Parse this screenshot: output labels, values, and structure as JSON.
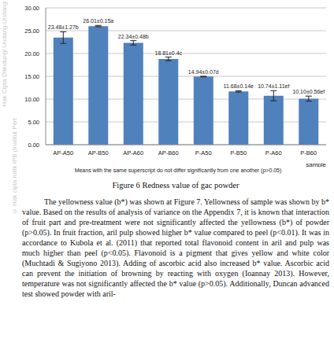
{
  "watermarks": [
    "Hak Cipta Dilindungi Undang-Undang",
    "© Hak cipta milik IPB (Institut Pert"
  ],
  "chart_data": {
    "type": "bar",
    "categories": [
      "AP-A50",
      "AP-B50",
      "AP-A60",
      "AP-B60",
      "P-A50",
      "P-B50",
      "P-A60",
      "P-B60"
    ],
    "values": [
      23.48,
      26.01,
      22.34,
      18.81,
      14.94,
      11.68,
      10.74,
      10.1
    ],
    "errors": [
      1.27,
      0.15,
      0.48,
      0.4,
      0.07,
      0.14,
      1.11,
      0.56
    ],
    "value_labels": [
      "23.48±1.27b",
      "26.01±0.15a",
      "22.34±0.48b",
      "18.81±0.4c",
      "14.94±0.07d",
      "11.68±0.14e",
      "10.74±1.11ef",
      "10.10±0.56ef"
    ],
    "data_labels": true,
    "color": "#4f81bd",
    "x_label": "sample",
    "note": "Means with the same superscript do not differ significantly from one another (p>0.05)",
    "ylim": [
      0,
      30
    ],
    "yticks": [
      {
        "value": 0,
        "label": "0.00"
      },
      {
        "value": 5,
        "label": "5.00"
      },
      {
        "value": 10,
        "label": "10.00"
      },
      {
        "value": 15,
        "label": "15.00"
      },
      {
        "value": 20,
        "label": "20.00"
      },
      {
        "value": 25,
        "label": "25.00"
      },
      {
        "value": 30,
        "label": "30.00"
      }
    ],
    "grid": true
  },
  "caption": "Figure 6 Redness value of gac powder",
  "paragraph": "The yellowness value (b*) was shown at Figure 7. Yellowness of sample was shown by b* value. Based on the results of analysis of variance on the Appendix 7, it is known that interaction of fruit part and pre-treatment were not significantly affected the yellowness (b*) of powder (p>0.05). In fruit fraction, aril pulp showed higher b* value compared to peel (p<0.01). It was in accordance to Kubola et al. (2011) that reported total flavonoid content in aril and pulp was much higher than peel (p<0.05). Flavonoid is a pigment that gives yellow and white color (Muchtadi & Sugiyono 2013). Adding of ascorbic acid also increased b* value. Ascorbic acid can prevent the initiation of browning by reacting with oxygen (Ioannay 2013). However, temperature was not significantly affected the b* value (p>0.05). Additionally, Duncan advanced test showed powder with aril-"
}
